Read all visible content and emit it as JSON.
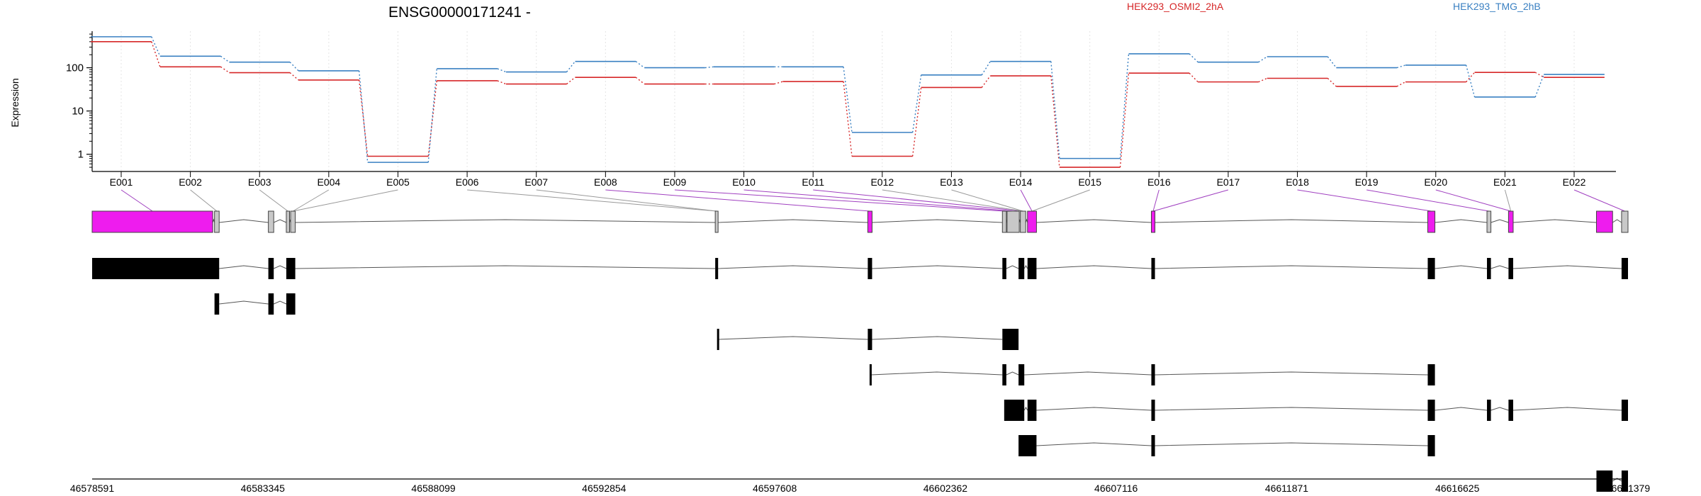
{
  "chart_data": {
    "type": "line",
    "title": "ENSG00000171241 -",
    "ylabel": "Expression",
    "yscale": "log",
    "ylim": [
      0.4,
      700
    ],
    "y_ticks": [
      1,
      10,
      100
    ],
    "y_tick_labels": [
      "1",
      "10",
      "100"
    ],
    "categories": [
      "E001",
      "E002",
      "E003",
      "E004",
      "E005",
      "E006",
      "E007",
      "E008",
      "E009",
      "E010",
      "E011",
      "E012",
      "E013",
      "E014",
      "E015",
      "E016",
      "E017",
      "E018",
      "E019",
      "E020",
      "E021",
      "E022"
    ],
    "series": [
      {
        "name": "HEK293_OSMI2_2hA",
        "color": "#d62728",
        "values": [
          400,
          105,
          77,
          52,
          0.9,
          50,
          42,
          60,
          42,
          42,
          48,
          0.9,
          35,
          65,
          0.5,
          75,
          47,
          57,
          37,
          47,
          78,
          60
        ]
      },
      {
        "name": "HEK293_TMG_2hB",
        "color": "#3a80c2",
        "values": [
          520,
          185,
          135,
          85,
          0.65,
          95,
          80,
          140,
          100,
          105,
          105,
          3.2,
          68,
          140,
          0.8,
          210,
          135,
          180,
          100,
          115,
          21,
          70
        ]
      }
    ],
    "genomic_axis_labels": [
      "46578591",
      "46583345",
      "46588099",
      "46592854",
      "46597608",
      "46602362",
      "46607116",
      "46611871",
      "46616625",
      "46621379"
    ],
    "genomic_range": [
      46578591,
      46621379
    ],
    "legend_position": "top-right",
    "grid": "vertical dotted at exons",
    "feature_colors": {
      "exon_highlight": "#ee1cee",
      "exon_plain": "#c8c8c8",
      "transcript_exon": "#000000",
      "line": "#555555"
    },
    "highlighted_bins": [
      "E001",
      "E008",
      "E009",
      "E010",
      "E011",
      "E014",
      "E016",
      "E017",
      "E018",
      "E019",
      "E020",
      "E022"
    ],
    "gene_exons": [
      [
        46578591,
        46581950
      ],
      [
        46582000,
        46582130
      ],
      [
        46583500,
        46583650
      ],
      [
        46584000,
        46584090
      ],
      [
        46584120,
        46584250
      ],
      [
        46595950,
        46596030
      ],
      [
        46600200,
        46600320
      ],
      [
        46603950,
        46604060
      ],
      [
        46604080,
        46604420
      ],
      [
        46604450,
        46604600
      ],
      [
        46604650,
        46604900
      ],
      [
        46608100,
        46608200
      ],
      [
        46615800,
        46616000
      ],
      [
        46617450,
        46617560
      ],
      [
        46618050,
        46618180
      ],
      [
        46620500,
        46620950
      ],
      [
        46621200,
        46621379
      ]
    ],
    "transcripts": [
      [
        [
          46578591,
          46582130
        ],
        [
          46583500,
          46583650
        ],
        [
          46584000,
          46584250
        ],
        [
          46595950,
          46596030
        ],
        [
          46600200,
          46600320
        ],
        [
          46603950,
          46604060
        ],
        [
          46604400,
          46604560
        ],
        [
          46604650,
          46604900
        ],
        [
          46608100,
          46608200
        ],
        [
          46615800,
          46616000
        ],
        [
          46617450,
          46617560
        ],
        [
          46618050,
          46618180
        ],
        [
          46621200,
          46621379
        ]
      ],
      [
        [
          46582000,
          46582130
        ],
        [
          46583500,
          46583650
        ],
        [
          46584000,
          46584250
        ]
      ],
      [
        [
          46596000,
          46596030
        ],
        [
          46600200,
          46600320
        ],
        [
          46603950,
          46604400
        ]
      ],
      [
        [
          46600250,
          46600290
        ],
        [
          46603950,
          46604060
        ],
        [
          46604400,
          46604560
        ],
        [
          46608100,
          46608200
        ],
        [
          46615800,
          46616000
        ]
      ],
      [
        [
          46604000,
          46604560
        ],
        [
          46604650,
          46604900
        ],
        [
          46608100,
          46608200
        ],
        [
          46615800,
          46616000
        ],
        [
          46617450,
          46617560
        ],
        [
          46618050,
          46618180
        ],
        [
          46621200,
          46621379
        ]
      ],
      [
        [
          46604400,
          46604900
        ],
        [
          46608100,
          46608200
        ],
        [
          46615800,
          46616000
        ]
      ],
      [
        [
          46620500,
          46620950
        ],
        [
          46621200,
          46621379
        ]
      ]
    ]
  }
}
